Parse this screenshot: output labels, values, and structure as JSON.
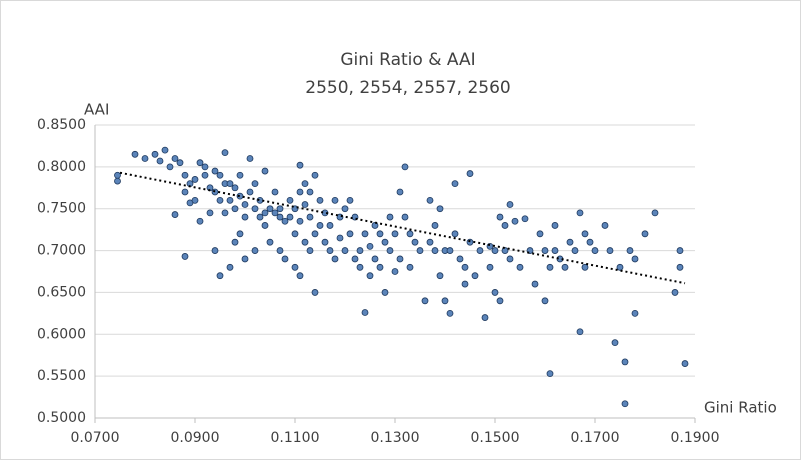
{
  "chart_data": {
    "type": "scatter",
    "title": "Gini Ratio & AAI",
    "subtitle": "2550, 2554, 2557, 2560",
    "x_label": "Gini Ratio",
    "y_label": "AAI",
    "color": "#5b84b9",
    "edge_color": "#1f3a5f",
    "trendline": {
      "x": [
        0.075,
        0.188
      ],
      "y": [
        0.793,
        0.661
      ],
      "color": "#000000"
    },
    "grid": true,
    "xlim": [
      0.07,
      0.19
    ],
    "ylim": [
      0.5,
      0.85
    ],
    "xticks": [
      {
        "value": 0.07,
        "label": "0.0700"
      },
      {
        "value": 0.09,
        "label": "0.0900"
      },
      {
        "value": 0.11,
        "label": "0.1100"
      },
      {
        "value": 0.13,
        "label": "0.1300"
      },
      {
        "value": 0.15,
        "label": "0.1500"
      },
      {
        "value": 0.17,
        "label": "0.1700"
      },
      {
        "value": 0.19,
        "label": "0.1900"
      }
    ],
    "yticks": [
      {
        "value": 0.5,
        "label": "0.5000"
      },
      {
        "value": 0.55,
        "label": "0.5500"
      },
      {
        "value": 0.6,
        "label": "0.6000"
      },
      {
        "value": 0.65,
        "label": "0.6500"
      },
      {
        "value": 0.7,
        "label": "0.7000"
      },
      {
        "value": 0.75,
        "label": "0.7500"
      },
      {
        "value": 0.8,
        "label": "0.8000"
      },
      {
        "value": 0.85,
        "label": "0.8500"
      }
    ],
    "x": [
      0.0745,
      0.0745,
      0.078,
      0.08,
      0.082,
      0.083,
      0.084,
      0.085,
      0.086,
      0.087,
      0.086,
      0.088,
      0.088,
      0.089,
      0.089,
      0.088,
      0.09,
      0.09,
      0.091,
      0.091,
      0.092,
      0.092,
      0.093,
      0.093,
      0.094,
      0.094,
      0.094,
      0.095,
      0.095,
      0.095,
      0.096,
      0.096,
      0.096,
      0.097,
      0.097,
      0.097,
      0.098,
      0.098,
      0.098,
      0.099,
      0.099,
      0.099,
      0.1,
      0.1,
      0.1,
      0.101,
      0.101,
      0.102,
      0.102,
      0.102,
      0.103,
      0.103,
      0.104,
      0.104,
      0.104,
      0.105,
      0.105,
      0.106,
      0.106,
      0.107,
      0.107,
      0.107,
      0.108,
      0.108,
      0.109,
      0.109,
      0.11,
      0.11,
      0.11,
      0.111,
      0.111,
      0.111,
      0.111,
      0.112,
      0.112,
      0.112,
      0.113,
      0.113,
      0.113,
      0.114,
      0.114,
      0.114,
      0.115,
      0.115,
      0.116,
      0.116,
      0.117,
      0.117,
      0.118,
      0.118,
      0.119,
      0.119,
      0.12,
      0.12,
      0.121,
      0.121,
      0.122,
      0.122,
      0.123,
      0.123,
      0.124,
      0.124,
      0.125,
      0.125,
      0.126,
      0.126,
      0.127,
      0.127,
      0.128,
      0.128,
      0.129,
      0.129,
      0.13,
      0.13,
      0.131,
      0.131,
      0.132,
      0.132,
      0.133,
      0.133,
      0.134,
      0.135,
      0.136,
      0.137,
      0.137,
      0.138,
      0.138,
      0.139,
      0.139,
      0.14,
      0.14,
      0.141,
      0.141,
      0.142,
      0.142,
      0.143,
      0.144,
      0.144,
      0.145,
      0.145,
      0.146,
      0.147,
      0.148,
      0.149,
      0.149,
      0.15,
      0.15,
      0.151,
      0.151,
      0.152,
      0.152,
      0.153,
      0.153,
      0.154,
      0.155,
      0.156,
      0.157,
      0.158,
      0.159,
      0.16,
      0.16,
      0.161,
      0.161,
      0.162,
      0.162,
      0.163,
      0.164,
      0.165,
      0.166,
      0.167,
      0.167,
      0.168,
      0.168,
      0.169,
      0.17,
      0.172,
      0.173,
      0.174,
      0.175,
      0.176,
      0.176,
      0.177,
      0.178,
      0.178,
      0.18,
      0.182,
      0.186,
      0.187,
      0.187,
      0.188
    ],
    "values": [
      0.783,
      0.79,
      0.815,
      0.81,
      0.815,
      0.807,
      0.82,
      0.8,
      0.81,
      0.805,
      0.743,
      0.79,
      0.77,
      0.78,
      0.757,
      0.693,
      0.785,
      0.76,
      0.805,
      0.735,
      0.8,
      0.79,
      0.775,
      0.745,
      0.795,
      0.77,
      0.7,
      0.79,
      0.76,
      0.67,
      0.817,
      0.78,
      0.745,
      0.78,
      0.76,
      0.68,
      0.775,
      0.75,
      0.71,
      0.79,
      0.765,
      0.72,
      0.755,
      0.74,
      0.69,
      0.81,
      0.77,
      0.78,
      0.75,
      0.7,
      0.76,
      0.74,
      0.795,
      0.745,
      0.73,
      0.75,
      0.71,
      0.77,
      0.745,
      0.75,
      0.74,
      0.7,
      0.735,
      0.69,
      0.76,
      0.74,
      0.75,
      0.72,
      0.68,
      0.802,
      0.77,
      0.735,
      0.67,
      0.78,
      0.755,
      0.71,
      0.77,
      0.74,
      0.7,
      0.79,
      0.72,
      0.65,
      0.76,
      0.73,
      0.745,
      0.71,
      0.73,
      0.7,
      0.76,
      0.69,
      0.74,
      0.715,
      0.75,
      0.7,
      0.76,
      0.72,
      0.74,
      0.69,
      0.7,
      0.68,
      0.72,
      0.626,
      0.705,
      0.67,
      0.73,
      0.69,
      0.72,
      0.68,
      0.71,
      0.65,
      0.7,
      0.74,
      0.72,
      0.675,
      0.77,
      0.69,
      0.8,
      0.74,
      0.72,
      0.68,
      0.71,
      0.7,
      0.64,
      0.76,
      0.71,
      0.73,
      0.7,
      0.75,
      0.67,
      0.7,
      0.64,
      0.625,
      0.7,
      0.78,
      0.72,
      0.69,
      0.68,
      0.66,
      0.792,
      0.71,
      0.67,
      0.7,
      0.62,
      0.705,
      0.68,
      0.65,
      0.7,
      0.74,
      0.64,
      0.73,
      0.7,
      0.755,
      0.69,
      0.735,
      0.68,
      0.738,
      0.7,
      0.66,
      0.72,
      0.7,
      0.64,
      0.553,
      0.68,
      0.73,
      0.7,
      0.69,
      0.68,
      0.71,
      0.7,
      0.745,
      0.603,
      0.72,
      0.68,
      0.71,
      0.7,
      0.73,
      0.7,
      0.59,
      0.68,
      0.567,
      0.517,
      0.7,
      0.625,
      0.69,
      0.72,
      0.745,
      0.65,
      0.7,
      0.68,
      0.565
    ]
  }
}
